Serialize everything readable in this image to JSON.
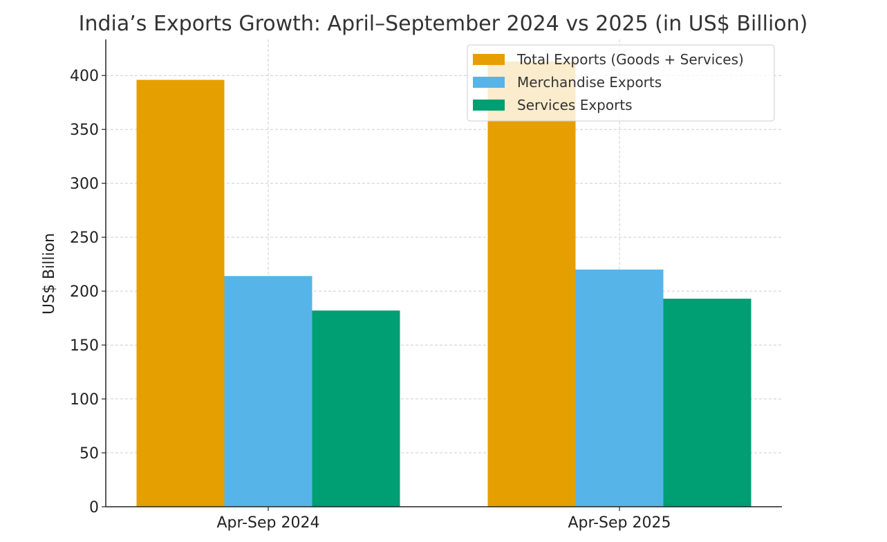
{
  "chart_data": {
    "type": "bar",
    "title": "India’s Exports Growth: April–September 2024 vs 2025 (in US$ Billion)",
    "xlabel": "",
    "ylabel": "US$ Billion",
    "categories": [
      "Apr-Sep 2024",
      "Apr-Sep 2025"
    ],
    "series": [
      {
        "name": "Total Exports (Goods + Services)",
        "color": "#E69F00",
        "values": [
          396,
          413
        ]
      },
      {
        "name": "Merchandise Exports",
        "color": "#56B4E9",
        "values": [
          214,
          220
        ]
      },
      {
        "name": "Services Exports",
        "color": "#009E73",
        "values": [
          182,
          193
        ]
      }
    ],
    "ylim": [
      0,
      433.5
    ],
    "yticks": [
      0,
      50,
      100,
      150,
      200,
      250,
      300,
      350,
      400
    ],
    "grid": true,
    "legend_position": "top-right"
  }
}
